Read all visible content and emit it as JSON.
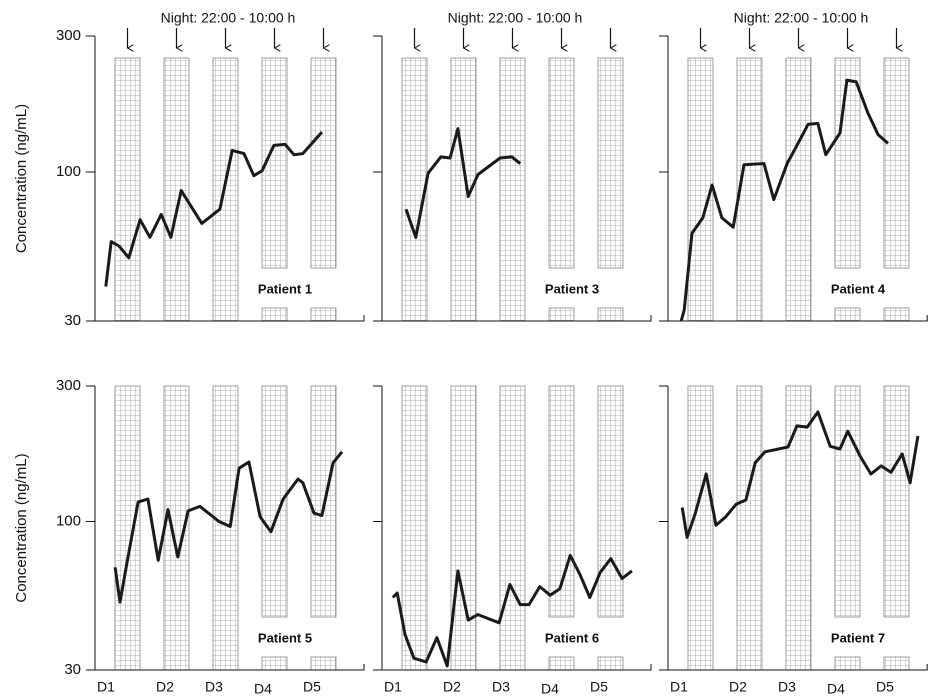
{
  "chart_data": [
    {
      "type": "line",
      "title": "Patient 1",
      "annotation": "Night: 22:00 - 10:00 h",
      "ylabel": "Concentration (ng/mL)",
      "yscale": "log",
      "ylim": [
        30,
        300
      ],
      "yticks": [
        30,
        100,
        300
      ],
      "xlim": [
        0,
        5.5
      ],
      "color": "#1a1a1a",
      "x": [
        0.22,
        0.33,
        0.49,
        0.69,
        0.92,
        1.12,
        1.35,
        1.55,
        1.76,
        2.18,
        2.55,
        2.8,
        3.04,
        3.24,
        3.41,
        3.65,
        3.88,
        4.06,
        4.24,
        4.63
      ],
      "values": [
        39.6,
        57,
        55,
        50,
        68,
        59,
        71,
        59,
        86,
        66,
        74,
        119,
        116,
        97,
        101,
        124,
        125,
        115,
        116,
        138
      ]
    },
    {
      "type": "line",
      "title": "Patient 3",
      "annotation": "Night: 22:00 - 10:00 h",
      "yscale": "log",
      "ylim": [
        30,
        300
      ],
      "yticks": [
        30,
        100,
        300
      ],
      "xlim": [
        0,
        5.5
      ],
      "color": "#1a1a1a",
      "x": [
        0.49,
        0.69,
        0.94,
        1.2,
        1.39,
        1.55,
        1.76,
        1.96,
        2.41,
        2.65,
        2.82
      ],
      "values": [
        74,
        59,
        99,
        113,
        112,
        142,
        82,
        98,
        112,
        113,
        107
      ]
    },
    {
      "type": "line",
      "title": "Patient 4",
      "annotation": "Night: 22:00 - 10:00 h",
      "yscale": "log",
      "ylim": [
        30,
        300
      ],
      "yticks": [
        30,
        100,
        300
      ],
      "xlim": [
        0,
        5.3
      ],
      "color": "#1a1a1a",
      "x": [
        0.27,
        0.33,
        0.49,
        0.71,
        0.9,
        1.1,
        1.33,
        1.55,
        1.96,
        2.16,
        2.43,
        2.61,
        2.86,
        3.06,
        3.22,
        3.51,
        3.65,
        3.84,
        4.08,
        4.29,
        4.49
      ],
      "values": [
        30,
        32.8,
        61,
        69,
        90,
        69,
        64,
        106,
        107,
        80,
        107,
        122,
        147,
        148,
        115,
        137,
        210,
        207,
        161,
        135,
        126
      ]
    },
    {
      "type": "line",
      "title": "Patient 5",
      "ylabel": "Concentration (ng/mL)",
      "categories": [
        "D1",
        "D2",
        "D3",
        "D4",
        "D5"
      ],
      "yscale": "log",
      "ylim": [
        30,
        300
      ],
      "yticks": [
        30,
        100,
        300
      ],
      "xlim": [
        0,
        5.5
      ],
      "color": "#1a1a1a",
      "x": [
        0.41,
        0.51,
        0.65,
        0.88,
        1.08,
        1.29,
        1.49,
        1.69,
        1.9,
        2.14,
        2.53,
        2.76,
        2.94,
        3.14,
        3.37,
        3.59,
        3.84,
        4.14,
        4.24,
        4.47,
        4.63,
        4.86,
        5.04
      ],
      "values": [
        69,
        52,
        71,
        117,
        120,
        73,
        110,
        75,
        109,
        113,
        100,
        96,
        154,
        162,
        104,
        92,
        120,
        141,
        137,
        107,
        105,
        161,
        176
      ]
    },
    {
      "type": "line",
      "title": "Patient 6",
      "categories": [
        "D1",
        "D2",
        "D3",
        "D4",
        "D5"
      ],
      "yscale": "log",
      "ylim": [
        30,
        300
      ],
      "yticks": [
        30,
        100,
        300
      ],
      "xlim": [
        0,
        5.5
      ],
      "color": "#1a1a1a",
      "x": [
        0.22,
        0.31,
        0.47,
        0.65,
        0.9,
        1.12,
        1.33,
        1.55,
        1.76,
        1.96,
        2.39,
        2.61,
        2.82,
        3.0,
        3.22,
        3.43,
        3.63,
        3.84,
        4.04,
        4.24,
        4.45,
        4.67,
        4.9,
        5.1
      ],
      "values": [
        54,
        56,
        40,
        33,
        32,
        39,
        31,
        67,
        45,
        47,
        44,
        60,
        51,
        51,
        59,
        55,
        58,
        76,
        65,
        54,
        66,
        74,
        63,
        67
      ]
    },
    {
      "type": "line",
      "title": "Patient 7",
      "categories": [
        "D1",
        "D2",
        "D3",
        "D4",
        "D5"
      ],
      "yscale": "log",
      "ylim": [
        30,
        300
      ],
      "yticks": [
        30,
        100,
        300
      ],
      "xlim": [
        0,
        5.3
      ],
      "color": "#1a1a1a",
      "x": [
        0.29,
        0.39,
        0.55,
        0.78,
        0.98,
        1.18,
        1.39,
        1.59,
        1.78,
        1.98,
        2.45,
        2.63,
        2.84,
        3.06,
        3.31,
        3.51,
        3.67,
        3.92,
        4.14,
        4.35,
        4.55,
        4.78,
        4.94,
        5.1
      ],
      "values": [
        112,
        88,
        106,
        147,
        97,
        104,
        115,
        119,
        161,
        176,
        183,
        217,
        215,
        243,
        184,
        180,
        208,
        170,
        147,
        157,
        149,
        173,
        137,
        200
      ]
    }
  ]
}
